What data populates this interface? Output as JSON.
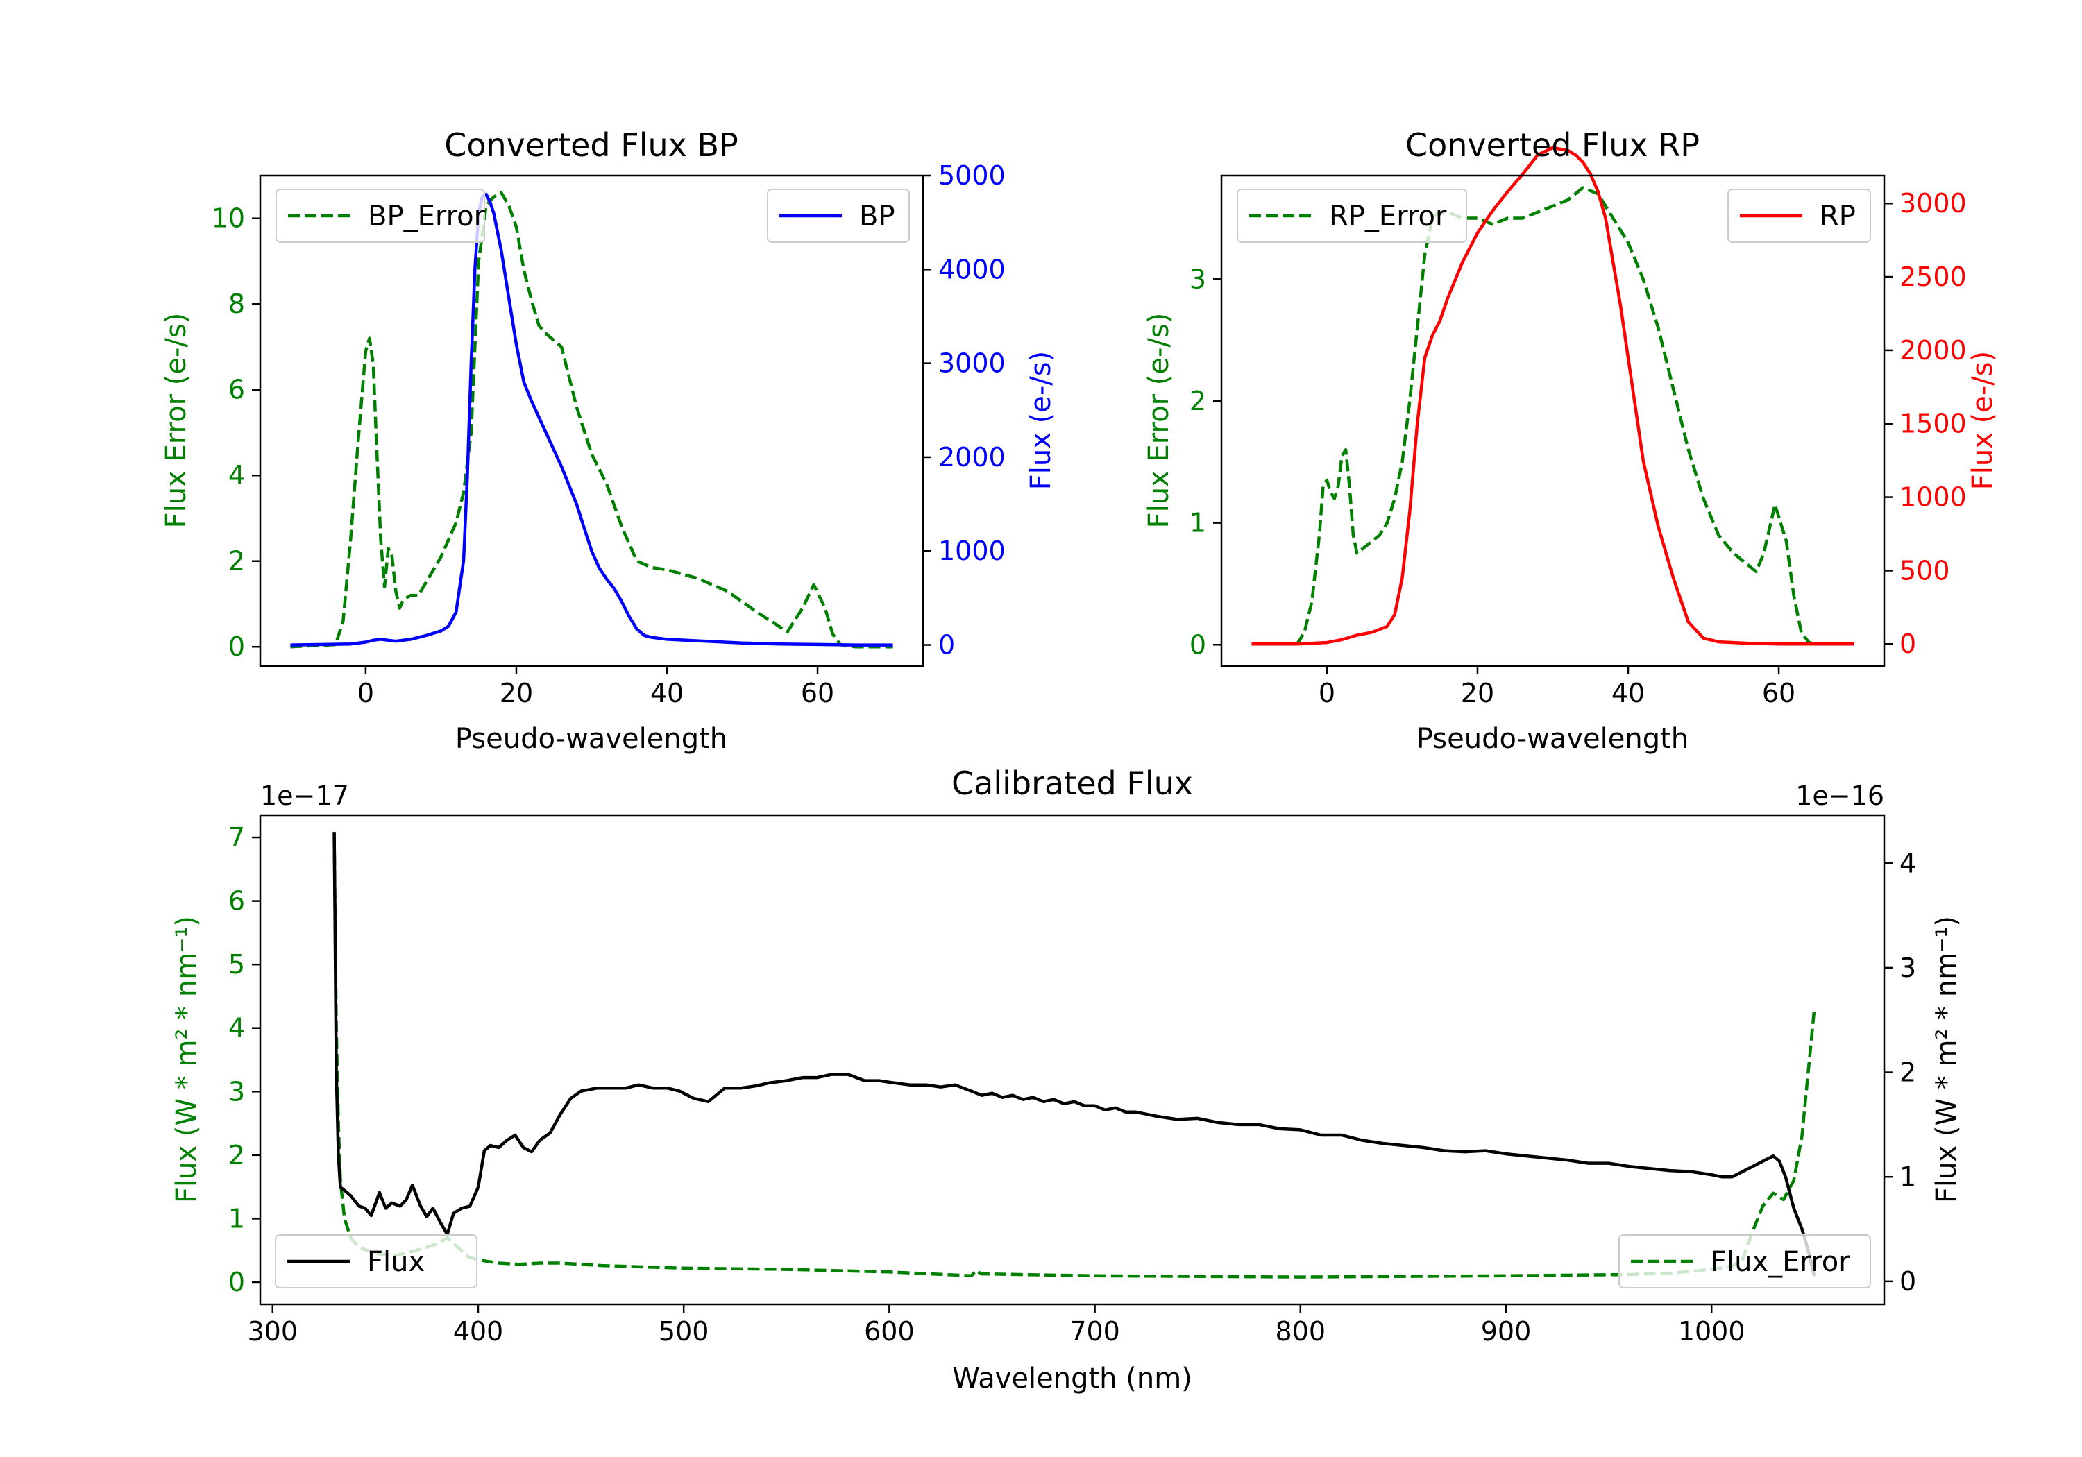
{
  "colors": {
    "green": "#008000",
    "blue": "#0000ff",
    "red": "#ff0000",
    "black": "#000000"
  },
  "chart_data": [
    {
      "type": "line",
      "title": "Converted Flux BP",
      "xlabel": "Pseudo-wavelength",
      "xlim": [
        -14,
        74
      ],
      "xticks": [
        "0",
        "20",
        "40",
        "60"
      ],
      "left_axis": {
        "label": "Flux Error (e-/s)",
        "color": "#008000",
        "ylim": [
          -0.45,
          11.0
        ],
        "ticks": [
          "0",
          "2",
          "4",
          "6",
          "8",
          "10"
        ]
      },
      "right_axis": {
        "label": "Flux (e-/s)",
        "color": "#0000ff",
        "ylim": [
          -225,
          5000
        ],
        "ticks": [
          "0",
          "1000",
          "2000",
          "3000",
          "4000",
          "5000"
        ]
      },
      "legend_left": {
        "label": "BP_Error",
        "placement": "upper-left"
      },
      "legend_right": {
        "label": "BP",
        "placement": "upper-right"
      },
      "series": [
        {
          "name": "BP_Error",
          "axis": "left",
          "style": "dashed",
          "color": "#008000",
          "x": [
            -10,
            -4,
            -3,
            -2,
            -1,
            0,
            0.5,
            1,
            1.5,
            2,
            2.5,
            3,
            3.5,
            4,
            4.5,
            5,
            6,
            7,
            8,
            10,
            12,
            13,
            14,
            15,
            16,
            17,
            18,
            19,
            20,
            21,
            22,
            23,
            24,
            26,
            28,
            30,
            32,
            34,
            36,
            38,
            40,
            44,
            48,
            52,
            56,
            58,
            59.5,
            61,
            62,
            63,
            65,
            70
          ],
          "y": [
            0.0,
            0.05,
            0.6,
            2.5,
            4.8,
            6.9,
            7.2,
            6.6,
            4.5,
            2.5,
            1.4,
            2.3,
            2.1,
            1.3,
            0.9,
            1.1,
            1.2,
            1.2,
            1.5,
            2.1,
            2.9,
            3.6,
            5.0,
            9.0,
            10.3,
            10.5,
            10.6,
            10.3,
            9.8,
            8.8,
            8.1,
            7.5,
            7.3,
            7.0,
            5.6,
            4.5,
            3.8,
            2.8,
            2.0,
            1.85,
            1.8,
            1.6,
            1.3,
            0.8,
            0.35,
            0.9,
            1.45,
            0.9,
            0.3,
            0.05,
            0.0,
            0.0
          ]
        },
        {
          "name": "BP",
          "axis": "right",
          "style": "solid",
          "color": "#0000ff",
          "x": [
            -10,
            -2,
            0,
            1,
            2,
            3,
            4,
            6,
            8,
            10,
            11,
            12,
            13,
            13.5,
            14,
            14.5,
            15,
            15.5,
            16,
            16.5,
            17,
            18,
            19,
            20,
            21,
            22,
            24,
            26,
            28,
            29,
            30,
            31,
            32,
            33,
            34,
            35,
            36,
            37,
            38,
            40,
            45,
            50,
            55,
            60,
            65,
            70
          ],
          "y": [
            0,
            10,
            30,
            50,
            60,
            50,
            40,
            60,
            100,
            150,
            200,
            350,
            900,
            1800,
            3000,
            4000,
            4600,
            4780,
            4800,
            4720,
            4600,
            4200,
            3700,
            3200,
            2800,
            2600,
            2250,
            1900,
            1500,
            1250,
            1000,
            820,
            700,
            600,
            460,
            300,
            170,
            100,
            80,
            60,
            40,
            20,
            10,
            5,
            0,
            0
          ]
        }
      ]
    },
    {
      "type": "line",
      "title": "Converted Flux RP",
      "xlabel": "Pseudo-wavelength",
      "xlim": [
        -14,
        74
      ],
      "xticks": [
        "0",
        "20",
        "40",
        "60"
      ],
      "left_axis": {
        "label": "Flux Error (e-/s)",
        "color": "#008000",
        "ylim": [
          -0.175,
          3.85
        ],
        "ticks": [
          "0",
          "1",
          "2",
          "3"
        ]
      },
      "right_axis": {
        "label": "Flux (e-/s)",
        "color": "#ff0000",
        "ylim": [
          -150,
          3190
        ],
        "ticks": [
          "0",
          "500",
          "1000",
          "1500",
          "2000",
          "2500",
          "3000"
        ]
      },
      "legend_left": {
        "label": "RP_Error",
        "placement": "upper-left"
      },
      "legend_right": {
        "label": "RP",
        "placement": "upper-right"
      },
      "series": [
        {
          "name": "RP_Error",
          "axis": "left",
          "style": "dashed",
          "color": "#008000",
          "x": [
            -4,
            -3,
            -2,
            -1,
            -0.5,
            0,
            0.5,
            1,
            1.5,
            2,
            2.5,
            3,
            3.5,
            4,
            5,
            6,
            7,
            8,
            9,
            10,
            11,
            12,
            13,
            14,
            15,
            16,
            18,
            20,
            22,
            24,
            26,
            28,
            30,
            32,
            34,
            36,
            38,
            40,
            42,
            44,
            46,
            48,
            50,
            52,
            54,
            56,
            57,
            58,
            59.5,
            61,
            62,
            63,
            64,
            65
          ],
          "y": [
            0.0,
            0.1,
            0.35,
            0.9,
            1.3,
            1.35,
            1.25,
            1.2,
            1.3,
            1.55,
            1.6,
            1.3,
            0.9,
            0.75,
            0.8,
            0.85,
            0.9,
            1.0,
            1.2,
            1.5,
            2.0,
            2.6,
            3.2,
            3.5,
            3.55,
            3.55,
            3.5,
            3.5,
            3.45,
            3.5,
            3.5,
            3.55,
            3.6,
            3.65,
            3.75,
            3.7,
            3.5,
            3.3,
            3.0,
            2.6,
            2.1,
            1.6,
            1.2,
            0.9,
            0.75,
            0.65,
            0.6,
            0.75,
            1.15,
            0.85,
            0.4,
            0.1,
            0.02,
            0.0
          ]
        },
        {
          "name": "RP",
          "axis": "right",
          "style": "solid",
          "color": "#ff0000",
          "x": [
            -10,
            -4,
            0,
            2,
            4,
            6,
            8,
            9,
            10,
            11,
            12,
            13,
            14,
            15,
            16,
            18,
            20,
            22,
            24,
            26,
            28,
            30,
            32,
            33,
            34,
            35,
            36,
            37,
            38,
            39,
            40,
            41,
            42,
            44,
            46,
            48,
            50,
            52,
            54,
            56,
            60,
            65,
            70
          ],
          "y": [
            0,
            0,
            10,
            30,
            60,
            80,
            120,
            200,
            450,
            900,
            1500,
            1950,
            2100,
            2200,
            2350,
            2600,
            2800,
            2950,
            3080,
            3200,
            3330,
            3380,
            3360,
            3330,
            3280,
            3200,
            3080,
            2900,
            2600,
            2300,
            1950,
            1600,
            1250,
            800,
            450,
            150,
            40,
            15,
            10,
            5,
            0,
            0,
            0
          ]
        }
      ]
    },
    {
      "type": "line",
      "title": "Calibrated Flux",
      "xlabel": "Wavelength (nm)",
      "xlim": [
        294,
        1084
      ],
      "xticks": [
        "300",
        "400",
        "500",
        "600",
        "700",
        "800",
        "900",
        "1000"
      ],
      "left_axis": {
        "label": "Flux (W * m² * nm⁻¹)",
        "color": "#008000",
        "ylim": [
          -0.35,
          7.35
        ],
        "ticks": [
          "0",
          "1",
          "2",
          "3",
          "4",
          "5",
          "6",
          "7"
        ],
        "offset": "1e−17"
      },
      "right_axis": {
        "label": "Flux (W * m² * nm⁻¹)",
        "color": "#000000",
        "ylim": [
          -0.22,
          4.46
        ],
        "ticks": [
          "0",
          "1",
          "2",
          "3",
          "4"
        ],
        "offset": "1e−16"
      },
      "legend_left": {
        "label": "Flux",
        "placement": "lower-left"
      },
      "legend_right": {
        "label": "Flux_Error",
        "placement": "lower-right"
      },
      "series": [
        {
          "name": "Flux_Error",
          "axis": "left",
          "style": "dashed",
          "color": "#008000",
          "x": [
            330,
            331,
            332,
            333,
            335,
            338,
            342,
            350,
            360,
            370,
            380,
            385,
            390,
            395,
            400,
            410,
            420,
            430,
            440,
            450,
            460,
            500,
            550,
            600,
            640,
            642,
            645,
            700,
            800,
            900,
            960,
            980,
            1000,
            1010,
            1015,
            1020,
            1025,
            1030,
            1035,
            1040,
            1044,
            1047,
            1050
          ],
          "y": [
            7.0,
            4.0,
            2.5,
            1.6,
            1.0,
            0.7,
            0.55,
            0.45,
            0.42,
            0.5,
            0.6,
            0.7,
            0.55,
            0.4,
            0.35,
            0.3,
            0.28,
            0.3,
            0.3,
            0.28,
            0.26,
            0.22,
            0.2,
            0.16,
            0.1,
            0.18,
            0.13,
            0.1,
            0.08,
            0.1,
            0.12,
            0.14,
            0.2,
            0.25,
            0.35,
            0.8,
            1.2,
            1.4,
            1.3,
            1.6,
            2.3,
            3.3,
            4.3
          ]
        },
        {
          "name": "Flux",
          "axis": "right",
          "style": "solid",
          "color": "#000000",
          "x": [
            330,
            331,
            332,
            333,
            335,
            338,
            342,
            345,
            348,
            352,
            355,
            358,
            362,
            365,
            368,
            372,
            375,
            378,
            382,
            385,
            388,
            392,
            396,
            400,
            403,
            406,
            410,
            414,
            418,
            422,
            426,
            430,
            435,
            440,
            445,
            450,
            458,
            465,
            472,
            478,
            485,
            492,
            498,
            505,
            512,
            520,
            528,
            535,
            542,
            550,
            558,
            565,
            572,
            580,
            588,
            595,
            602,
            610,
            618,
            625,
            632,
            640,
            645,
            650,
            655,
            660,
            665,
            670,
            675,
            680,
            685,
            690,
            695,
            700,
            705,
            710,
            715,
            720,
            730,
            740,
            750,
            760,
            770,
            780,
            790,
            800,
            810,
            820,
            830,
            840,
            850,
            860,
            870,
            880,
            890,
            900,
            910,
            920,
            930,
            940,
            950,
            960,
            970,
            980,
            990,
            1000,
            1005,
            1010,
            1015,
            1020,
            1025,
            1028,
            1030,
            1033,
            1036,
            1040,
            1044,
            1047,
            1050
          ],
          "y": [
            4.3,
            2.0,
            1.2,
            0.9,
            0.87,
            0.82,
            0.72,
            0.7,
            0.63,
            0.85,
            0.7,
            0.75,
            0.72,
            0.78,
            0.92,
            0.72,
            0.62,
            0.7,
            0.55,
            0.45,
            0.65,
            0.7,
            0.72,
            0.9,
            1.25,
            1.3,
            1.28,
            1.35,
            1.4,
            1.28,
            1.24,
            1.35,
            1.42,
            1.6,
            1.75,
            1.82,
            1.85,
            1.85,
            1.85,
            1.88,
            1.85,
            1.85,
            1.82,
            1.75,
            1.72,
            1.85,
            1.85,
            1.87,
            1.9,
            1.92,
            1.95,
            1.95,
            1.98,
            1.98,
            1.92,
            1.92,
            1.9,
            1.88,
            1.88,
            1.86,
            1.88,
            1.82,
            1.78,
            1.8,
            1.76,
            1.78,
            1.74,
            1.76,
            1.72,
            1.74,
            1.7,
            1.72,
            1.68,
            1.68,
            1.64,
            1.66,
            1.62,
            1.62,
            1.58,
            1.55,
            1.56,
            1.52,
            1.5,
            1.5,
            1.46,
            1.45,
            1.4,
            1.4,
            1.35,
            1.32,
            1.3,
            1.28,
            1.25,
            1.24,
            1.25,
            1.22,
            1.2,
            1.18,
            1.16,
            1.13,
            1.13,
            1.1,
            1.08,
            1.06,
            1.05,
            1.02,
            1.0,
            1.0,
            1.05,
            1.1,
            1.15,
            1.18,
            1.2,
            1.15,
            1.0,
            0.7,
            0.5,
            0.3,
            0.05
          ]
        }
      ]
    }
  ]
}
